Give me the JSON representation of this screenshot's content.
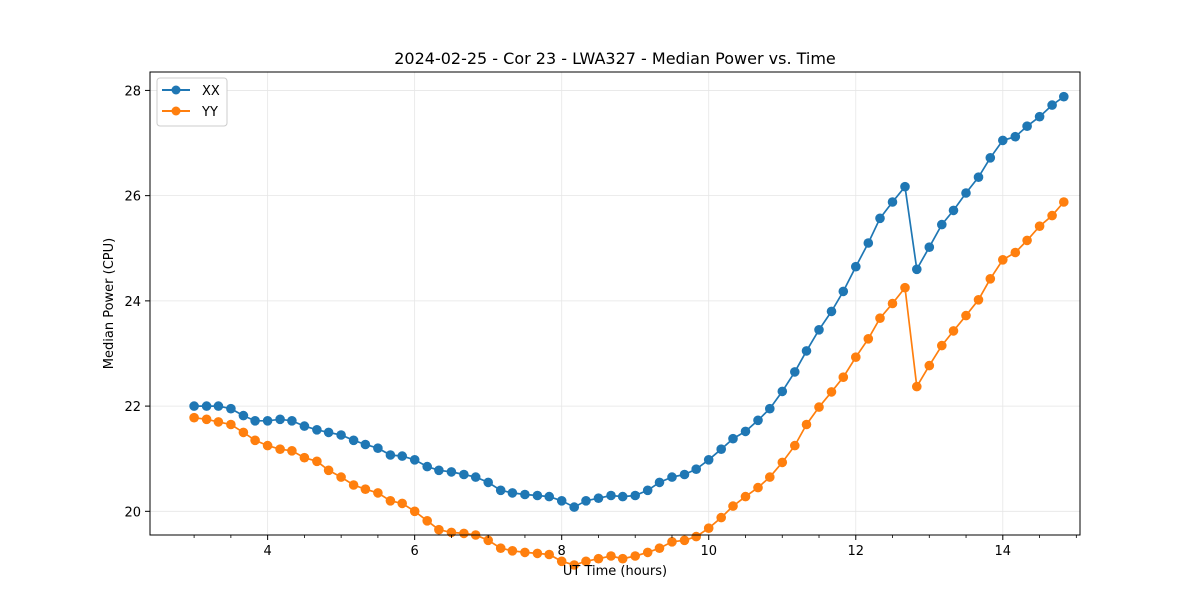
{
  "chart_data": {
    "type": "line",
    "title": "2024-02-25 - Cor 23 - LWA327 - Median Power vs. Time",
    "xlabel": "UT Time (hours)",
    "ylabel": "Median Power (CPU)",
    "xlim": [
      2.4,
      15.05
    ],
    "ylim": [
      19.55,
      28.35
    ],
    "xticks": [
      4,
      6,
      8,
      10,
      12,
      14
    ],
    "yticks": [
      20,
      22,
      24,
      26,
      28
    ],
    "grid": true,
    "legend_position": "upper-left",
    "x": [
      3.0,
      3.17,
      3.33,
      3.5,
      3.67,
      3.83,
      4.0,
      4.17,
      4.33,
      4.5,
      4.67,
      4.83,
      5.0,
      5.17,
      5.33,
      5.5,
      5.67,
      5.83,
      6.0,
      6.17,
      6.33,
      6.5,
      6.67,
      6.83,
      7.0,
      7.17,
      7.33,
      7.5,
      7.67,
      7.83,
      8.0,
      8.17,
      8.33,
      8.5,
      8.67,
      8.83,
      9.0,
      9.17,
      9.33,
      9.5,
      9.67,
      9.83,
      10.0,
      10.17,
      10.33,
      10.5,
      10.67,
      10.83,
      11.0,
      11.17,
      11.33,
      11.5,
      11.67,
      11.83,
      12.0,
      12.17,
      12.33,
      12.5,
      12.67,
      12.83,
      13.0,
      13.17,
      13.33,
      13.5,
      13.67,
      13.83,
      14.0,
      14.17,
      14.33,
      14.5,
      14.67,
      14.83
    ],
    "series": [
      {
        "name": "XX",
        "color": "#1f77b4",
        "values": [
          22.0,
          22.0,
          22.0,
          21.95,
          21.82,
          21.72,
          21.72,
          21.75,
          21.72,
          21.62,
          21.55,
          21.5,
          21.45,
          21.35,
          21.27,
          21.2,
          21.07,
          21.05,
          20.98,
          20.85,
          20.78,
          20.75,
          20.7,
          20.65,
          20.55,
          20.4,
          20.35,
          20.32,
          20.3,
          20.28,
          20.2,
          20.08,
          20.2,
          20.25,
          20.3,
          20.28,
          20.3,
          20.4,
          20.55,
          20.65,
          20.7,
          20.8,
          20.98,
          21.18,
          21.38,
          21.52,
          21.73,
          21.95,
          22.28,
          22.65,
          23.05,
          23.45,
          23.8,
          24.18,
          24.65,
          25.1,
          25.57,
          25.88,
          26.17,
          24.6,
          25.02,
          25.45,
          25.72,
          26.05,
          26.35,
          26.72,
          27.05,
          27.12,
          27.32,
          27.5,
          27.72,
          27.88
        ]
      },
      {
        "name": "YY",
        "color": "#ff7f0e",
        "values": [
          21.78,
          21.75,
          21.7,
          21.65,
          21.5,
          21.35,
          21.25,
          21.18,
          21.15,
          21.02,
          20.95,
          20.78,
          20.65,
          20.5,
          20.42,
          20.35,
          20.2,
          20.15,
          20.0,
          19.82,
          19.65,
          19.6,
          19.58,
          19.55,
          19.45,
          19.3,
          19.25,
          19.22,
          19.2,
          19.18,
          19.05,
          18.98,
          19.05,
          19.1,
          19.15,
          19.1,
          19.15,
          19.22,
          19.3,
          19.42,
          19.45,
          19.52,
          19.68,
          19.88,
          20.1,
          20.28,
          20.45,
          20.65,
          20.93,
          21.25,
          21.65,
          21.98,
          22.27,
          22.55,
          22.93,
          23.28,
          23.67,
          23.95,
          24.25,
          22.37,
          22.77,
          23.15,
          23.43,
          23.72,
          24.02,
          24.42,
          24.78,
          24.92,
          25.15,
          25.42,
          25.62,
          25.88
        ]
      }
    ]
  }
}
